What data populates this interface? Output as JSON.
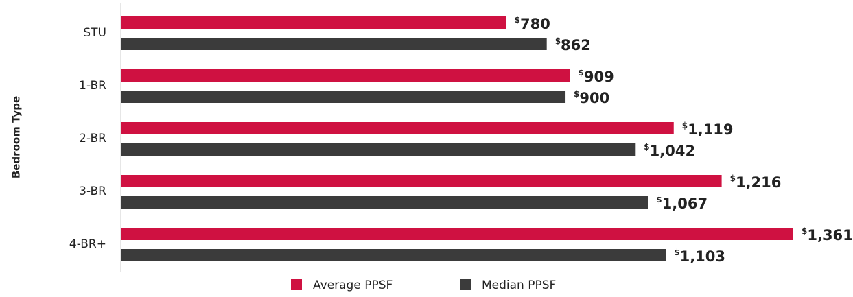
{
  "chart_data": {
    "type": "bar",
    "orientation": "horizontal",
    "y_label": "Bedroom Type",
    "categories": [
      "STU",
      "1-BR",
      "2-BR",
      "3-BR",
      "4-BR+"
    ],
    "series": [
      {
        "name": "Average PPSF",
        "color": "#cf1141",
        "values": [
          780,
          909,
          1119,
          1216,
          1361
        ],
        "value_labels": [
          "$780",
          "$909",
          "$1,119",
          "$1,216",
          "$1,361"
        ]
      },
      {
        "name": "Median PPSF",
        "color": "#3b3b3b",
        "values": [
          862,
          900,
          1042,
          1067,
          1103
        ],
        "value_labels": [
          "$862",
          "$900",
          "$1,042",
          "$1,067",
          "$1,103"
        ]
      }
    ],
    "legend": "bottom"
  }
}
